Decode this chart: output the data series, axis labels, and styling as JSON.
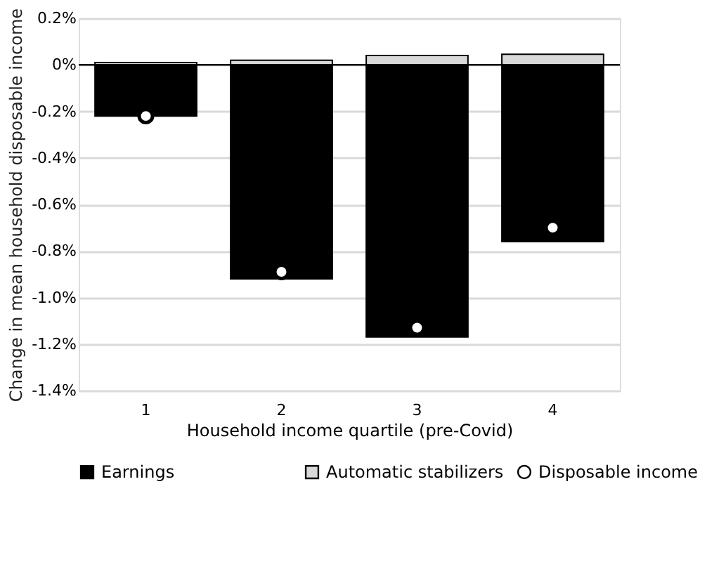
{
  "chart_data": {
    "type": "bar",
    "stacked": true,
    "ylabel": "Change in mean household disposable income",
    "xlabel": "Household income quartile (pre-Covid)",
    "categories": [
      "1",
      "2",
      "3",
      "4"
    ],
    "series": [
      {
        "name": "Earnings",
        "color": "#000000",
        "values": [
          -0.22,
          -0.92,
          -1.17,
          -0.76
        ]
      },
      {
        "name": "Automatic stabilizers",
        "color": "#d9d9d9",
        "values": [
          0.01,
          0.02,
          0.04,
          0.045
        ]
      },
      {
        "name": "Disposable income",
        "type": "scatter",
        "marker": "circle",
        "color": "#ffffff",
        "values": [
          -0.22,
          -0.89,
          -1.13,
          -0.7
        ]
      }
    ],
    "ylim": [
      -1.4,
      0.2
    ],
    "yticks": [
      {
        "value": 0.2,
        "label": "0.2%"
      },
      {
        "value": 0,
        "label": "0%"
      },
      {
        "value": -0.2,
        "label": "-0.2%"
      },
      {
        "value": -0.4,
        "label": "-0.4%"
      },
      {
        "value": -0.6,
        "label": "-0.6%"
      },
      {
        "value": -0.8,
        "label": "-0.8%"
      },
      {
        "value": -1.0,
        "label": "-1.0%"
      },
      {
        "value": -1.2,
        "label": "-1.2%"
      },
      {
        "value": -1.4,
        "label": "-1.4%"
      }
    ],
    "grid": "y",
    "legend": "bottom"
  }
}
